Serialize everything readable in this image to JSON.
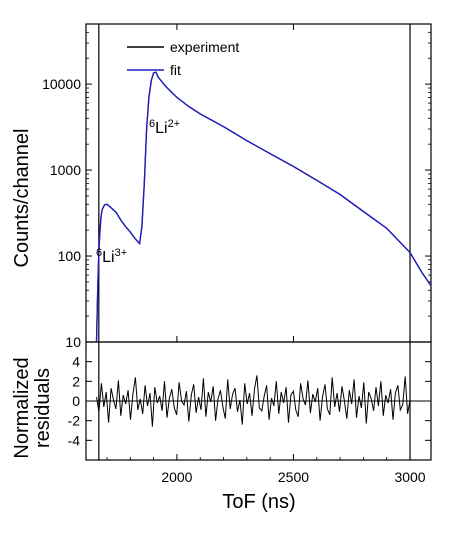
{
  "chart_data": [
    {
      "type": "line",
      "panel": "main",
      "title": "",
      "xlabel": "ToF (ns)",
      "ylabel": "Counts/channel",
      "xlim": [
        1610,
        3090
      ],
      "ylim": [
        10,
        50000
      ],
      "y_scale": "log",
      "grid": false,
      "legend_position": "top-left",
      "yticks": [
        10,
        100,
        1000,
        10000
      ],
      "ytick_labels": [
        "10",
        "100",
        "1000",
        "10000"
      ],
      "series": [
        {
          "name": "experiment",
          "color": "#000000",
          "x": [
            1655,
            1660,
            1665,
            1670,
            1675,
            1680,
            1690,
            1700,
            1720,
            1740,
            1760,
            1780,
            1800,
            1820,
            1840,
            1850,
            1860,
            1870,
            1880,
            1890,
            1900,
            1910,
            1920,
            1950,
            2000,
            2050,
            2100,
            2200,
            2300,
            2400,
            2500,
            2600,
            2700,
            2800,
            2900,
            3000,
            3050,
            3090
          ],
          "y": [
            10,
            40,
            110,
            200,
            300,
            350,
            395,
            400,
            360,
            320,
            260,
            220,
            190,
            160,
            140,
            220,
            700,
            3000,
            7000,
            11000,
            13500,
            13800,
            12000,
            9500,
            7000,
            5500,
            4500,
            3200,
            2200,
            1550,
            1100,
            760,
            520,
            330,
            210,
            110,
            65,
            45
          ]
        },
        {
          "name": "fit",
          "color": "#1f1fbf",
          "x": [
            1655,
            1660,
            1665,
            1670,
            1675,
            1680,
            1690,
            1700,
            1720,
            1740,
            1760,
            1780,
            1800,
            1820,
            1840,
            1850,
            1860,
            1870,
            1880,
            1890,
            1900,
            1910,
            1920,
            1950,
            2000,
            2050,
            2100,
            2200,
            2300,
            2400,
            2500,
            2600,
            2700,
            2800,
            2900,
            3000,
            3050,
            3090
          ],
          "y": [
            10,
            40,
            110,
            200,
            300,
            350,
            395,
            400,
            360,
            320,
            260,
            220,
            190,
            160,
            140,
            220,
            700,
            3000,
            7000,
            11000,
            13500,
            13800,
            12000,
            9500,
            7000,
            5500,
            4500,
            3200,
            2200,
            1550,
            1100,
            760,
            520,
            330,
            210,
            110,
            65,
            45
          ]
        }
      ],
      "vertical_lines": [
        1665,
        3000
      ],
      "annotations": [
        {
          "base": "6",
          "label": "Li",
          "charge": "3+",
          "x": 1720,
          "y": 90
        },
        {
          "base": "6",
          "label": "Li",
          "charge": "2+",
          "x": 1990,
          "y": 5000
        }
      ]
    },
    {
      "type": "line",
      "panel": "residuals",
      "xlabel": "ToF (ns)",
      "ylabel": "Normalized residuals",
      "ylabel_lines": [
        "Normalized",
        "residuals"
      ],
      "xlim": [
        1610,
        3090
      ],
      "ylim": [
        -6,
        6
      ],
      "xticks": [
        2000,
        2500,
        3000
      ],
      "xtick_labels": [
        "2000",
        "2500",
        "3000"
      ],
      "yticks": [
        -4,
        -2,
        0,
        2,
        4
      ],
      "ytick_labels": [
        "-4",
        "-2",
        "0",
        "2",
        "4"
      ],
      "zero_line": true,
      "series": [
        {
          "name": "",
          "color": "#000000",
          "x_start": 1655,
          "x_end": 3000,
          "y": [
            0.4,
            -1.1,
            1.8,
            -0.6,
            0.9,
            -2.2,
            1.3,
            0.1,
            -0.8,
            2.1,
            -1.5,
            0.6,
            -0.3,
            1.1,
            -1.9,
            0.7,
            2.4,
            -0.9,
            0.2,
            -1.3,
            1.6,
            -0.5,
            0.8,
            -2.6,
            1.4,
            -0.2,
            0.5,
            -1.0,
            2.0,
            -1.7,
            0.3,
            1.2,
            -0.7,
            -1.4,
            1.9,
            0.0,
            -0.4,
            1.0,
            -2.1,
            0.6,
            1.7,
            -1.2,
            0.4,
            -0.9,
            2.3,
            -1.6,
            0.9,
            -0.1,
            1.5,
            -2.0,
            0.2,
            1.1,
            -0.6,
            -1.8,
            2.2,
            -0.8,
            0.7,
            1.3,
            -1.1,
            0.1,
            -2.4,
            1.8,
            -0.3,
            0.8,
            -1.5,
            1.2,
            2.6,
            -0.7,
            -1.0,
            0.5,
            1.6,
            -1.9,
            0.3,
            -0.5,
            2.0,
            -1.3,
            0.9,
            -0.2,
            1.4,
            -2.2,
            0.6,
            1.0,
            -0.9,
            -1.6,
            1.8,
            0.2,
            -0.4,
            2.1,
            -1.2,
            0.7,
            -0.1,
            1.3,
            -2.0,
            0.4,
            1.7,
            -0.8,
            -1.4,
            2.4,
            -0.6,
            0.8,
            -1.1,
            1.5,
            0.0,
            -1.8,
            1.1,
            -0.3,
            2.2,
            -1.7,
            0.5,
            -0.7,
            1.9,
            -2.3,
            0.9,
            0.3,
            -1.0,
            1.4,
            -0.5,
            2.0,
            -1.5,
            0.6,
            -0.2,
            1.2,
            -1.9,
            0.8,
            1.6,
            -0.9,
            -0.4,
            2.5,
            -1.3,
            0.1
          ]
        }
      ]
    }
  ]
}
